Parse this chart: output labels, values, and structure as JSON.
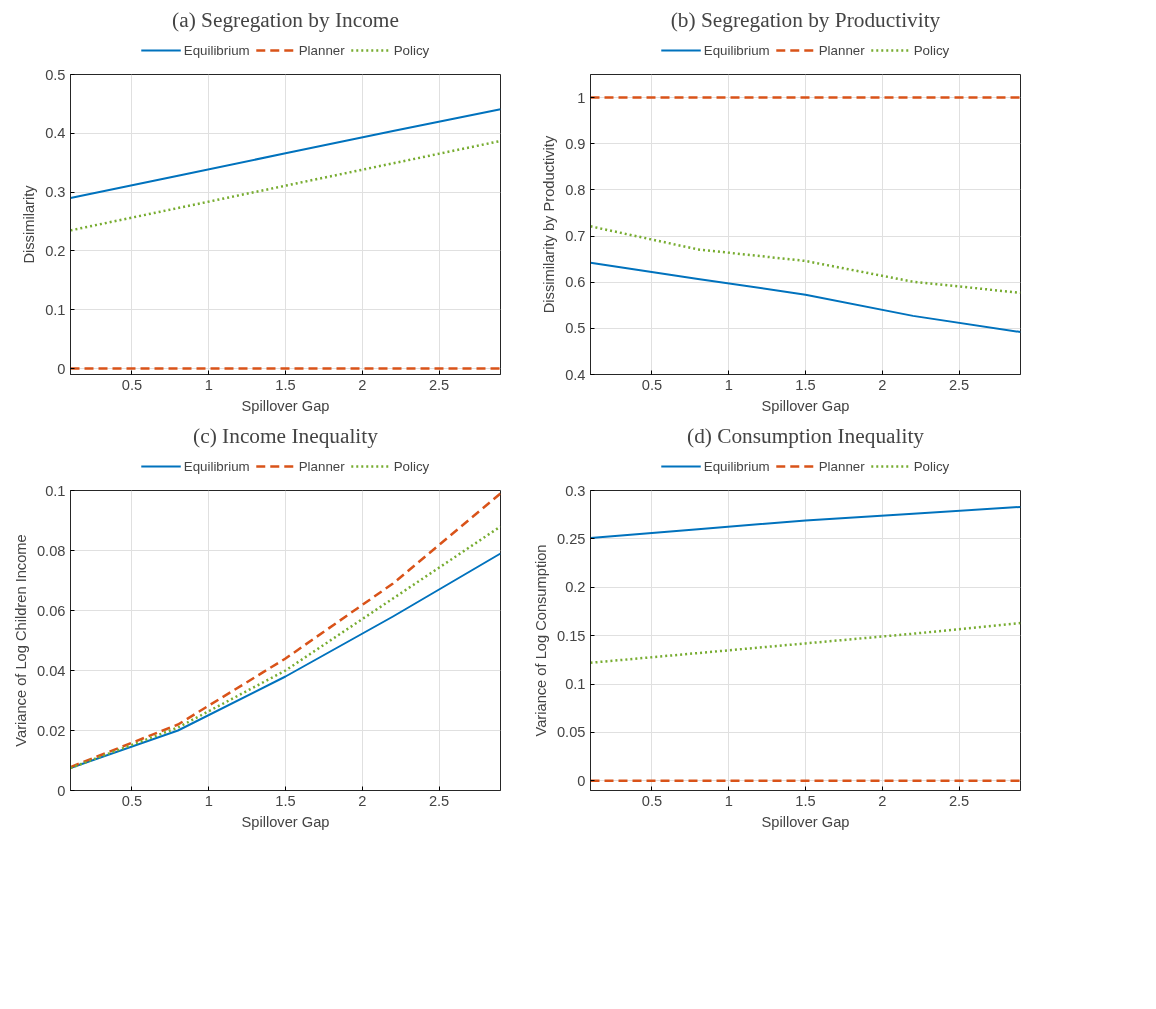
{
  "chart_data": [
    {
      "type": "line",
      "title": "(a) Segregation by Income",
      "xlabel": "Spillover Gap",
      "ylabel": "Dissimilarity",
      "x": [
        0.1,
        0.8,
        1.5,
        2.2,
        2.9
      ],
      "xlim": [
        0.1,
        2.9
      ],
      "xticks": [
        0.5,
        1,
        1.5,
        2,
        2.5
      ],
      "ylim": [
        -0.01,
        0.5
      ],
      "yticks": [
        0,
        0.1,
        0.2,
        0.3,
        0.4,
        0.5
      ],
      "grid": true,
      "legend": "top",
      "series": [
        {
          "name": "Equilibrium",
          "color": "#0072bd",
          "line_style": "solid",
          "values": [
            0.29,
            0.328,
            0.366,
            0.404,
            0.441
          ]
        },
        {
          "name": "Planner",
          "color": "#d95319",
          "line_style": "dashed",
          "values": [
            0,
            0,
            0,
            0,
            0
          ]
        },
        {
          "name": "Policy",
          "color": "#77ac30",
          "line_style": "dotted",
          "values": [
            0.235,
            0.273,
            0.311,
            0.349,
            0.387
          ]
        }
      ]
    },
    {
      "type": "line",
      "title": "(b) Segregation by Productivity",
      "xlabel": "Spillover Gap",
      "ylabel": "Dissimilarity by Productivity",
      "x": [
        0.1,
        0.8,
        1.5,
        2.2,
        2.9
      ],
      "xlim": [
        0.1,
        2.9
      ],
      "xticks": [
        0.5,
        1,
        1.5,
        2,
        2.5
      ],
      "ylim": [
        0.4,
        1.05
      ],
      "yticks": [
        0.4,
        0.5,
        0.6,
        0.7,
        0.8,
        0.9,
        1
      ],
      "grid": true,
      "legend": "top",
      "series": [
        {
          "name": "Equilibrium",
          "color": "#0072bd",
          "line_style": "solid",
          "values": [
            0.642,
            0.607,
            0.573,
            0.527,
            0.492
          ]
        },
        {
          "name": "Planner",
          "color": "#d95319",
          "line_style": "dashed",
          "values": [
            1,
            1,
            1,
            1,
            1
          ]
        },
        {
          "name": "Policy",
          "color": "#77ac30",
          "line_style": "dotted",
          "values": [
            0.721,
            0.671,
            0.646,
            0.601,
            0.577
          ]
        }
      ]
    },
    {
      "type": "line",
      "title": "(c) Income Inequality",
      "xlabel": "Spillover Gap",
      "ylabel": "Variance of Log Children Income",
      "x": [
        0.1,
        0.8,
        1.5,
        2.2,
        2.9
      ],
      "xlim": [
        0.1,
        2.9
      ],
      "xticks": [
        0.5,
        1,
        1.5,
        2,
        2.5
      ],
      "ylim": [
        0,
        0.1
      ],
      "yticks": [
        0,
        0.02,
        0.04,
        0.06,
        0.08,
        0.1
      ],
      "grid": true,
      "legend": "top",
      "series": [
        {
          "name": "Equilibrium",
          "color": "#0072bd",
          "line_style": "solid",
          "values": [
            0.0075,
            0.02,
            0.038,
            0.058,
            0.079
          ]
        },
        {
          "name": "Planner",
          "color": "#d95319",
          "line_style": "dashed",
          "values": [
            0.0078,
            0.022,
            0.044,
            0.069,
            0.099
          ]
        },
        {
          "name": "Policy",
          "color": "#77ac30",
          "line_style": "dotted",
          "values": [
            0.0075,
            0.021,
            0.04,
            0.064,
            0.088
          ]
        }
      ]
    },
    {
      "type": "line",
      "title": "(d) Consumption Inequality",
      "xlabel": "Spillover Gap",
      "ylabel": "Variance of Log Consumption",
      "x": [
        0.1,
        0.8,
        1.5,
        2.2,
        2.9
      ],
      "xlim": [
        0.1,
        2.9
      ],
      "xticks": [
        0.5,
        1,
        1.5,
        2,
        2.5
      ],
      "ylim": [
        -0.01,
        0.3
      ],
      "yticks": [
        0,
        0.05,
        0.1,
        0.15,
        0.2,
        0.25,
        0.3
      ],
      "grid": true,
      "legend": "top",
      "series": [
        {
          "name": "Equilibrium",
          "color": "#0072bd",
          "line_style": "solid",
          "values": [
            0.251,
            0.26,
            0.269,
            0.276,
            0.283
          ]
        },
        {
          "name": "Planner",
          "color": "#d95319",
          "line_style": "dashed",
          "values": [
            0,
            0,
            0,
            0,
            0
          ]
        },
        {
          "name": "Policy",
          "color": "#77ac30",
          "line_style": "dotted",
          "values": [
            0.122,
            0.132,
            0.142,
            0.152,
            0.163
          ]
        }
      ]
    }
  ]
}
